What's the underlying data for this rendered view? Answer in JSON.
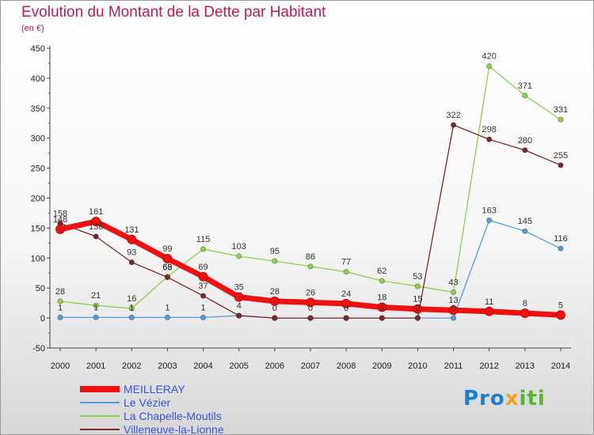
{
  "header": {
    "title": "Evolution du Montant de la Dette par Habitant",
    "unit": "(en €)"
  },
  "brand": {
    "part1": "Pro",
    "part2": "x",
    "part3": "iti"
  },
  "chart_data": {
    "type": "line",
    "title": "Evolution du Montant de la Dette par Habitant",
    "subtitle": "(en €)",
    "x": [
      2000,
      2001,
      2002,
      2003,
      2004,
      2005,
      2006,
      2007,
      2008,
      2009,
      2010,
      2011,
      2012,
      2013,
      2014
    ],
    "y_ticks": [
      -50,
      0,
      50,
      100,
      150,
      200,
      250,
      300,
      350,
      400,
      450
    ],
    "ylim": [
      -50,
      450
    ],
    "grid": false,
    "legend_position": "bottom-left",
    "series": [
      {
        "name": "MEILLERAY",
        "color": "#ee1111",
        "values": [
          148,
          161,
          131,
          99,
          69,
          35,
          28,
          26,
          24,
          18,
          15,
          13,
          11,
          8,
          5
        ],
        "labels": [
          "148",
          "161",
          "131",
          "99",
          "69",
          "35",
          "28",
          "26",
          "24",
          "18",
          "15",
          "13",
          "11",
          "8",
          "5"
        ]
      },
      {
        "name": "Le Vézier",
        "color": "#5b9bd5",
        "values": [
          1,
          1,
          1,
          1,
          1,
          4,
          0,
          0,
          0,
          0,
          0,
          0,
          163,
          145,
          116
        ],
        "labels": [
          "1",
          "1",
          "1",
          "1",
          "1",
          "4",
          "0",
          "0",
          "0",
          "0",
          "0",
          "0",
          "163",
          "145",
          "116"
        ]
      },
      {
        "name": "La Chapelle-Moutils",
        "color": "#8fd14f",
        "values": [
          28,
          21,
          16,
          69,
          115,
          103,
          95,
          86,
          77,
          62,
          53,
          43,
          420,
          371,
          331
        ],
        "labels": [
          "28",
          "21",
          "16",
          "69",
          "115",
          "103",
          "95",
          "86",
          "77",
          "62",
          "53",
          "43",
          "420",
          "371",
          "331"
        ]
      },
      {
        "name": "Villeneuve-la-Lionne",
        "color": "#7b2a2a",
        "values": [
          158,
          136,
          93,
          68,
          37,
          4,
          0,
          0,
          0,
          0,
          0,
          322,
          298,
          280,
          255
        ],
        "labels": [
          "158",
          "136",
          "93",
          "68",
          "37",
          "",
          "",
          "",
          "",
          "",
          "",
          "322",
          "298",
          "280",
          "255"
        ]
      }
    ]
  }
}
